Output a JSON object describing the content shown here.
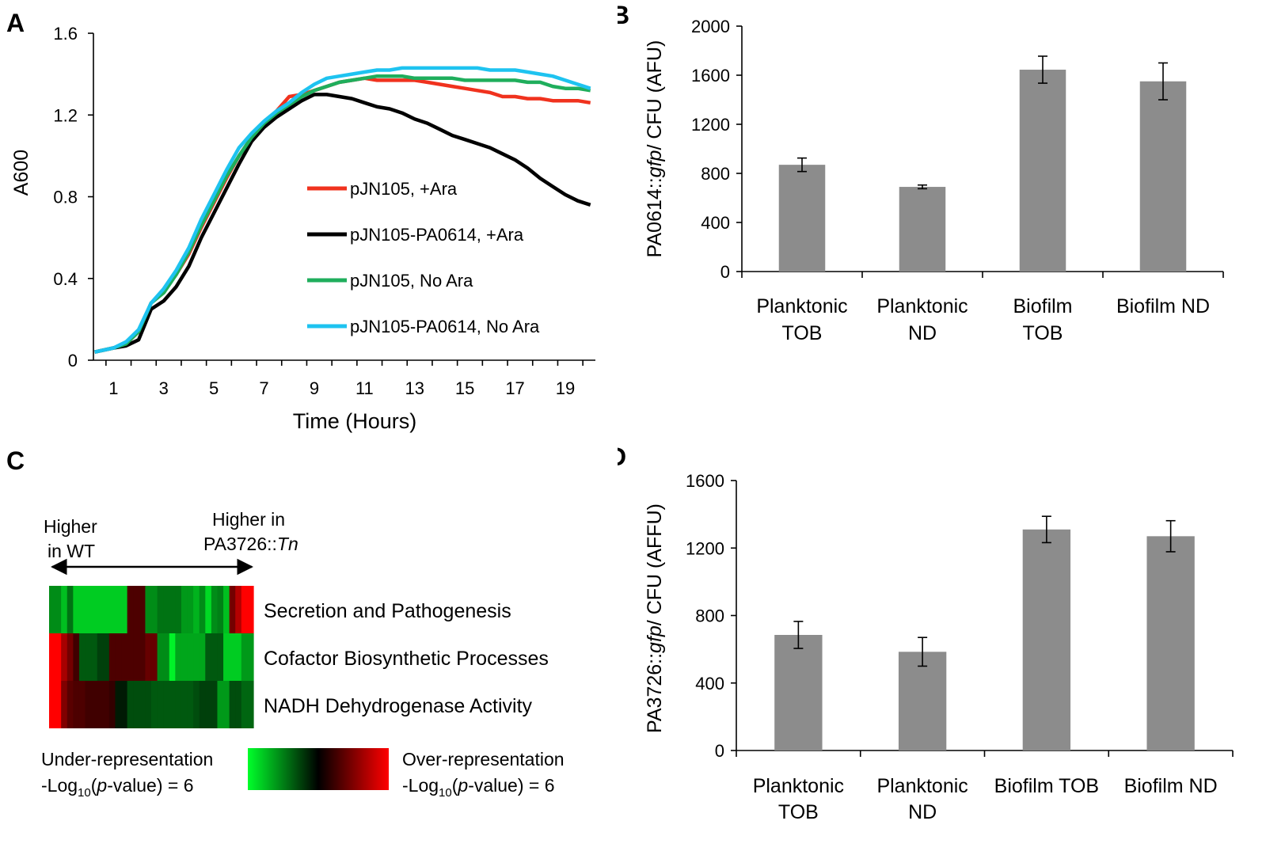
{
  "panels": {
    "A": "A",
    "B": "B",
    "C": "C",
    "D": "D"
  },
  "chart_data": [
    {
      "type": "line",
      "panel": "A",
      "ylabel": "A600",
      "xlabel": "Time (Hours)",
      "xlim": [
        0.2,
        20.2
      ],
      "ylim": [
        0,
        1.6
      ],
      "xticks": [
        "1",
        "3",
        "5",
        "7",
        "9",
        "11",
        "13",
        "15",
        "17",
        "19"
      ],
      "yticks": [
        "0",
        "0.4",
        "0.8",
        "1.2",
        "1.6"
      ],
      "legend_placement": "center-right",
      "x": [
        0.25,
        1,
        1.5,
        2,
        2.5,
        3,
        3.5,
        4,
        4.5,
        5,
        5.5,
        6,
        6.5,
        7,
        7.5,
        8,
        8.5,
        9,
        9.5,
        10,
        10.5,
        11,
        11.5,
        12,
        12.5,
        13,
        13.5,
        14,
        14.5,
        15,
        15.5,
        16,
        16.5,
        17,
        17.5,
        18,
        18.5,
        19,
        19.5,
        20
      ],
      "series": [
        {
          "name": "pJN105, +Ara",
          "color": "#f0321e",
          "values": [
            0.04,
            0.06,
            0.08,
            0.14,
            0.28,
            0.34,
            0.42,
            0.52,
            0.65,
            0.77,
            0.89,
            1.0,
            1.09,
            1.16,
            1.22,
            1.29,
            1.3,
            1.32,
            1.34,
            1.36,
            1.37,
            1.38,
            1.37,
            1.37,
            1.37,
            1.37,
            1.36,
            1.35,
            1.34,
            1.33,
            1.32,
            1.31,
            1.29,
            1.29,
            1.28,
            1.28,
            1.27,
            1.27,
            1.27,
            1.26
          ]
        },
        {
          "name": "pJN105-PA0614, +Ara",
          "color": "#000000",
          "values": [
            0.04,
            0.06,
            0.07,
            0.1,
            0.25,
            0.29,
            0.36,
            0.46,
            0.6,
            0.72,
            0.84,
            0.96,
            1.07,
            1.14,
            1.19,
            1.23,
            1.27,
            1.3,
            1.3,
            1.29,
            1.28,
            1.26,
            1.24,
            1.23,
            1.21,
            1.18,
            1.16,
            1.13,
            1.1,
            1.08,
            1.06,
            1.04,
            1.01,
            0.98,
            0.94,
            0.89,
            0.85,
            0.81,
            0.78,
            0.76
          ]
        },
        {
          "name": "pJN105, No Ara",
          "color": "#1fae5c",
          "values": [
            0.04,
            0.06,
            0.08,
            0.14,
            0.28,
            0.33,
            0.42,
            0.53,
            0.66,
            0.78,
            0.9,
            1.0,
            1.09,
            1.16,
            1.21,
            1.25,
            1.29,
            1.32,
            1.34,
            1.36,
            1.37,
            1.38,
            1.39,
            1.39,
            1.39,
            1.38,
            1.38,
            1.38,
            1.38,
            1.37,
            1.37,
            1.37,
            1.37,
            1.37,
            1.36,
            1.36,
            1.34,
            1.33,
            1.33,
            1.32
          ]
        },
        {
          "name": "pJN105-PA0614, No Ara",
          "color": "#1ec3f0",
          "values": [
            0.04,
            0.06,
            0.09,
            0.15,
            0.28,
            0.35,
            0.44,
            0.55,
            0.69,
            0.81,
            0.93,
            1.04,
            1.11,
            1.17,
            1.22,
            1.26,
            1.31,
            1.35,
            1.38,
            1.39,
            1.4,
            1.41,
            1.42,
            1.42,
            1.43,
            1.43,
            1.43,
            1.43,
            1.43,
            1.43,
            1.43,
            1.42,
            1.42,
            1.42,
            1.41,
            1.4,
            1.39,
            1.37,
            1.35,
            1.33
          ]
        }
      ]
    },
    {
      "type": "bar",
      "panel": "B",
      "ylabel_parts": [
        "PA0614::",
        "gfp",
        "/ CFU (AFU)"
      ],
      "ylim": [
        0,
        2000
      ],
      "yticks": [
        "0",
        "400",
        "800",
        "1200",
        "1600",
        "2000"
      ],
      "categories": [
        [
          "Planktonic",
          "TOB"
        ],
        [
          "Planktonic",
          "ND"
        ],
        [
          "Biofilm",
          "TOB"
        ],
        [
          "Biofilm ND",
          ""
        ]
      ],
      "values": [
        870,
        690,
        1645,
        1550
      ],
      "errors": [
        55,
        15,
        110,
        150
      ]
    },
    {
      "type": "heatmap",
      "panel": "C",
      "left_label": [
        "Higher",
        "in WT"
      ],
      "right_label": [
        "Higher in",
        "PA3726::",
        "Tn"
      ],
      "rows": [
        "Secretion and Pathogenesis",
        "Cofactor Biosynthetic Processes",
        "NADH Dehydrogenase Activity"
      ],
      "values": [
        [
          -0.55,
          -0.55,
          -0.75,
          -0.45,
          -0.8,
          -0.8,
          -0.8,
          -0.8,
          -0.8,
          -0.8,
          -0.8,
          -0.8,
          -0.8,
          0.3,
          0.3,
          0.3,
          -0.55,
          -0.55,
          -0.45,
          -0.45,
          -0.45,
          -0.45,
          -0.6,
          -0.6,
          -0.7,
          -0.55,
          -0.85,
          -0.55,
          -0.5,
          -0.75,
          0.45,
          0.7,
          1.0,
          1.0
        ],
        [
          1.0,
          1.0,
          0.65,
          0.45,
          0.25,
          -0.35,
          -0.35,
          -0.35,
          -0.25,
          -0.25,
          0.3,
          0.3,
          0.3,
          0.3,
          0.3,
          0.3,
          0.4,
          0.4,
          -0.55,
          -0.55,
          -0.95,
          -0.65,
          -0.65,
          -0.65,
          -0.65,
          -0.65,
          -0.35,
          -0.35,
          -0.35,
          -0.8,
          -0.8,
          -0.8,
          -0.6,
          -0.6
        ],
        [
          1.0,
          1.0,
          0.5,
          0.35,
          0.3,
          0.3,
          0.25,
          0.25,
          0.25,
          0.25,
          0.2,
          -0.1,
          -0.1,
          -0.3,
          -0.3,
          -0.3,
          -0.3,
          -0.35,
          -0.35,
          -0.35,
          -0.35,
          -0.35,
          -0.35,
          -0.35,
          -0.3,
          -0.25,
          -0.25,
          -0.25,
          -0.6,
          -0.6,
          -0.3,
          -0.3,
          -0.4,
          -0.4
        ]
      ],
      "legend_left": [
        "Under-representation",
        "-Log",
        "10",
        "(",
        "p",
        "-value) = 6"
      ],
      "legend_right": [
        "Over-representation",
        "-Log",
        "10",
        "(",
        "p",
        "-value) = 6"
      ],
      "colormap": [
        "#00ff2a",
        "#000000",
        "#ff0000"
      ]
    },
    {
      "type": "bar",
      "panel": "D",
      "ylabel_parts": [
        "PA3726::",
        "gfp",
        "/ CFU (AFFU)"
      ],
      "ylim": [
        0,
        1600
      ],
      "yticks": [
        "0",
        "400",
        "800",
        "1200",
        "1600"
      ],
      "categories": [
        [
          "Planktonic",
          "TOB"
        ],
        [
          "Planktonic",
          "ND"
        ],
        [
          "Biofilm TOB",
          ""
        ],
        [
          "Biofilm ND",
          ""
        ]
      ],
      "values": [
        685,
        585,
        1310,
        1270
      ],
      "errors": [
        80,
        85,
        78,
        92
      ]
    }
  ]
}
